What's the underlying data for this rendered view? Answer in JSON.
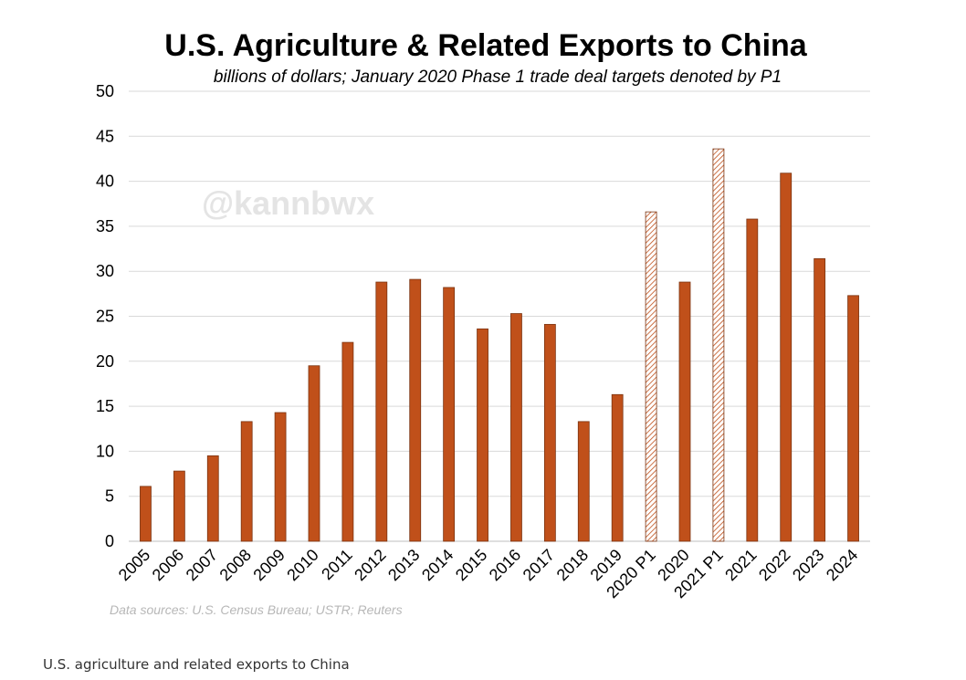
{
  "watermark": "@kannbwx",
  "caption": "U.S. agriculture and related exports to China",
  "colors": {
    "bar": "#c0501a",
    "bar_edge": "#7a3310",
    "target_hatch": "#c0501a",
    "grid": "#d9d9d9"
  },
  "chart_data": {
    "type": "bar",
    "title": "U.S. Agriculture & Related Exports to China",
    "subtitle": "billions of dollars; January 2020 Phase 1 trade deal targets denoted by P1",
    "source": "Data sources: U.S. Census Bureau; USTR; Reuters",
    "xlabel": "",
    "ylabel": "",
    "ylim": [
      0,
      50
    ],
    "yticks": [
      0,
      5,
      10,
      15,
      20,
      25,
      30,
      35,
      40,
      45,
      50
    ],
    "grid": true,
    "legend": "none",
    "categories": [
      "2005",
      "2006",
      "2007",
      "2008",
      "2009",
      "2010",
      "2011",
      "2012",
      "2013",
      "2014",
      "2015",
      "2016",
      "2017",
      "2018",
      "2019",
      "2020 P1",
      "2020",
      "2021 P1",
      "2021",
      "2022",
      "2023",
      "2024"
    ],
    "values": [
      6.1,
      7.8,
      9.5,
      13.3,
      14.3,
      19.5,
      22.1,
      28.8,
      29.1,
      28.2,
      23.6,
      25.3,
      24.1,
      13.3,
      16.3,
      36.6,
      28.8,
      43.6,
      35.8,
      40.9,
      31.4,
      27.3
    ],
    "target_categories": [
      "2020 P1",
      "2021 P1"
    ]
  }
}
